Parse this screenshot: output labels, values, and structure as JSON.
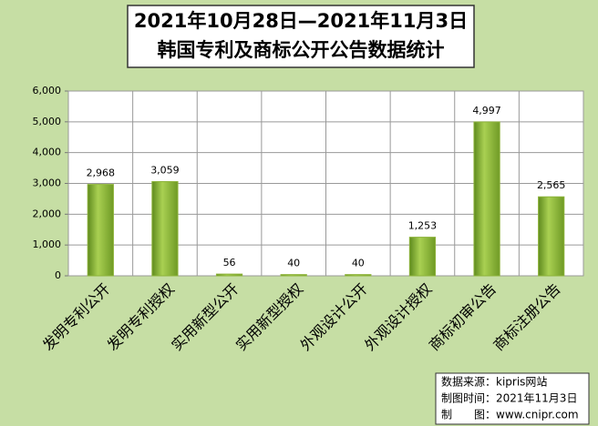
{
  "chart_data": {
    "type": "bar",
    "title_lines": [
      "2021年10月28日—2021年11月3日",
      "韩国专利及商标公开公告数据统计"
    ],
    "categories": [
      "发明专利公开",
      "发明专利授权",
      "实用新型公开",
      "实用新型授权",
      "外观设计公开",
      "外观设计授权",
      "商标初审公告",
      "商标注册公告"
    ],
    "values": [
      2968,
      3059,
      56,
      40,
      40,
      1253,
      4997,
      2565
    ],
    "value_labels": [
      "2,968",
      "3,059",
      "56",
      "40",
      "40",
      "1,253",
      "4,997",
      "2,565"
    ],
    "color": "#8db33a",
    "ylim": [
      0,
      6000
    ],
    "yticks": [
      0,
      {
        "value": 1000,
        "label": "1,000"
      },
      {
        "value": 2000,
        "label": "2,000"
      },
      {
        "value": 3000,
        "label": "3,000"
      },
      {
        "value": 4000,
        "label": "4,000"
      },
      {
        "value": 5000,
        "label": "5,000"
      },
      {
        "value": 6000,
        "label": "6,000"
      }
    ],
    "grid": true,
    "annotations": [
      "数据来源：kipris网站",
      "制图时间：2021年11月3日",
      "制　　图：www.cnipr.com"
    ]
  }
}
